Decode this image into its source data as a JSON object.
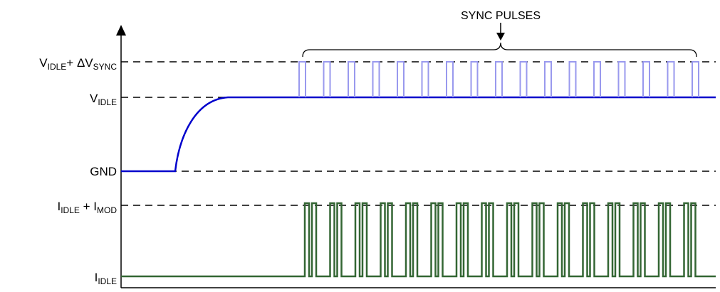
{
  "title": "SYNC PULSES",
  "levels": {
    "v_sync": {
      "main": "V",
      "sub1": "IDLE",
      "plus": "+ ΔV",
      "sub2": "SYNC"
    },
    "v_idle": {
      "main": "V",
      "sub": "IDLE"
    },
    "gnd": {
      "text": "GND"
    },
    "i_mod": {
      "main": "I",
      "sub1": "IDLE",
      "plus": " + I",
      "sub2": "MOD"
    },
    "i_idle": {
      "main": "I",
      "sub": "IDLE"
    }
  },
  "colors": {
    "voltage_trace": "#0000cc",
    "sync_pulse": "#9999ee",
    "current_trace": "#336633",
    "axis": "#000000",
    "reference": "#000000"
  }
}
